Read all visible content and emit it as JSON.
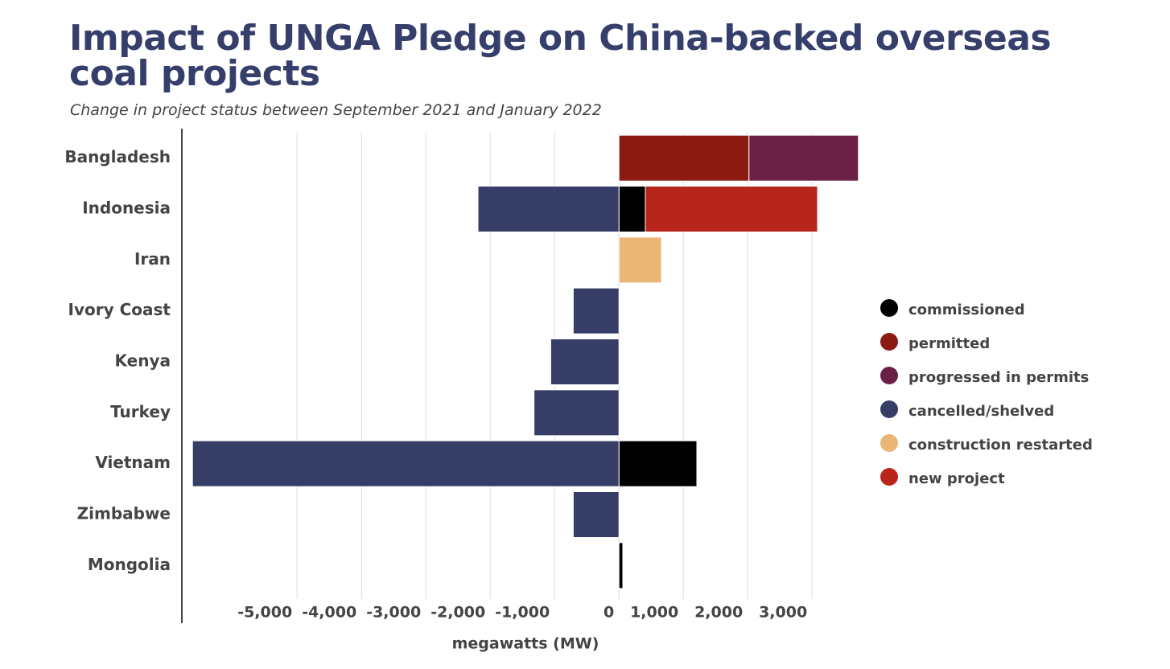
{
  "chart_data": {
    "type": "stacked-barh",
    "title": "Impact of UNGA Pledge on China-backed overseas coal projects",
    "subtitle": "Change in project status between September 2021 and January 2022",
    "x_label": "megawatts (MW)",
    "categories": [
      "Bangladesh",
      "Indonesia",
      "Iran",
      "Ivory Coast",
      "Kenya",
      "Turkey",
      "Vietnam",
      "Zimbabwe",
      "Mongolia"
    ],
    "series": [
      {
        "name": "commissioned",
        "color": "#000000",
        "values": [
          null,
          410,
          null,
          null,
          null,
          null,
          1210,
          null,
          60
        ]
      },
      {
        "name": "permitted",
        "color": "#8b1a10",
        "values": [
          2020,
          null,
          null,
          null,
          null,
          null,
          null,
          null,
          null
        ]
      },
      {
        "name": "progressed in permits",
        "color": "#6b2046",
        "values": [
          1700,
          null,
          null,
          null,
          null,
          null,
          null,
          null,
          null
        ]
      },
      {
        "name": "cancelled/shelved",
        "color": "#363e68",
        "values": [
          null,
          -2190,
          null,
          -710,
          -1060,
          -1320,
          -6625,
          -710,
          null
        ]
      },
      {
        "name": "construction restarted",
        "color": "#ebb575",
        "values": [
          null,
          null,
          660,
          null,
          null,
          null,
          null,
          null,
          null
        ]
      },
      {
        "name": "new project",
        "color": "#b8251b",
        "values": [
          null,
          2675,
          null,
          null,
          null,
          null,
          null,
          null,
          null
        ]
      }
    ],
    "xlim": [
      -6790,
      3900
    ],
    "xticks": [
      {
        "value": -5000,
        "label": "-5,000"
      },
      {
        "value": -4000,
        "label": "-4,000"
      },
      {
        "value": -3000,
        "label": "-3,000"
      },
      {
        "value": -2000,
        "label": "-2,000"
      },
      {
        "value": -1000,
        "label": "-1,000"
      },
      0,
      {
        "value": 1000,
        "label": "1,000"
      },
      {
        "value": 2000,
        "label": "2,000"
      },
      {
        "value": 3000,
        "label": "3,000"
      }
    ],
    "grid": true,
    "legend": "right"
  }
}
